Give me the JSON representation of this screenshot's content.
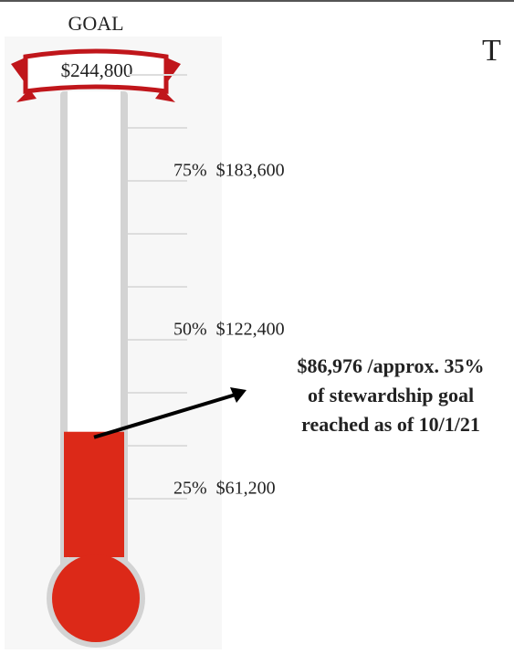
{
  "chart_data": {
    "type": "thermometer",
    "title": "GOAL",
    "goal_label": "$244,800",
    "values": [
      86976
    ],
    "color": "#dc2918",
    "ylim": [
      0,
      244800
    ],
    "yticks": [
      {
        "value": 61200,
        "label": "25%  $61,200"
      },
      {
        "value": 122400,
        "label": "50%  $122,400"
      },
      {
        "value": 183600,
        "label": "75%  $183,600"
      }
    ],
    "minor_ticks": [
      81600,
      102000,
      142800,
      163200,
      204000,
      224400
    ],
    "annotation": [
      "$86,976 /approx. 35%",
      "of stewardship goal",
      "reached as of 10/1/21"
    ],
    "heading_fragment": "T"
  }
}
